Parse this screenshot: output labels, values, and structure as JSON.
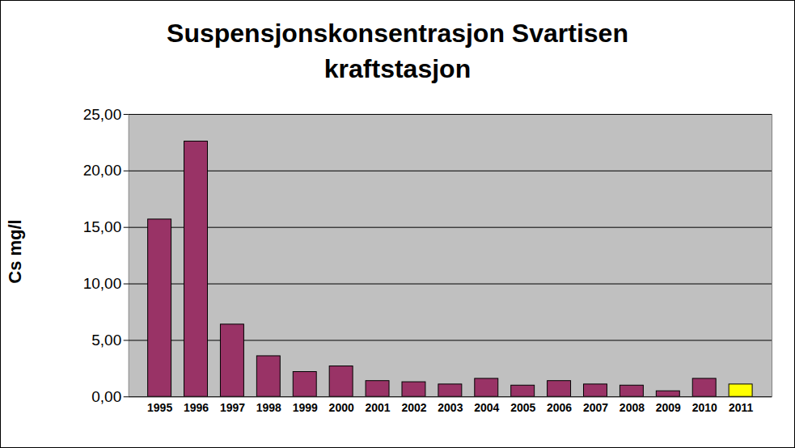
{
  "chart_data": {
    "type": "bar",
    "title": "Suspensjonskonsentrasjon Svartisen kraftstasjon",
    "y_label": "Cs mg/l",
    "categories": [
      "1995",
      "1996",
      "1997",
      "1998",
      "1999",
      "2000",
      "2001",
      "2002",
      "2003",
      "2004",
      "2005",
      "2006",
      "2007",
      "2008",
      "2009",
      "2010",
      "2011"
    ],
    "values": [
      15.7,
      22.6,
      6.4,
      3.6,
      2.2,
      2.7,
      1.4,
      1.3,
      1.1,
      1.6,
      1.0,
      1.4,
      1.1,
      1.0,
      0.5,
      1.6,
      1.1
    ],
    "colors": [
      "#993366",
      "#993366",
      "#993366",
      "#993366",
      "#993366",
      "#993366",
      "#993366",
      "#993366",
      "#993366",
      "#993366",
      "#993366",
      "#993366",
      "#993366",
      "#993366",
      "#993366",
      "#993366",
      "#ffff00"
    ],
    "ylim": [
      0,
      25
    ],
    "yticks": [
      {
        "value": 0,
        "label": "0,00"
      },
      {
        "value": 5,
        "label": "5,00"
      },
      {
        "value": 10,
        "label": "10,00"
      },
      {
        "value": 15,
        "label": "15,00"
      },
      {
        "value": 20,
        "label": "20,00"
      },
      {
        "value": 25,
        "label": "25,00"
      }
    ],
    "grid": true
  }
}
